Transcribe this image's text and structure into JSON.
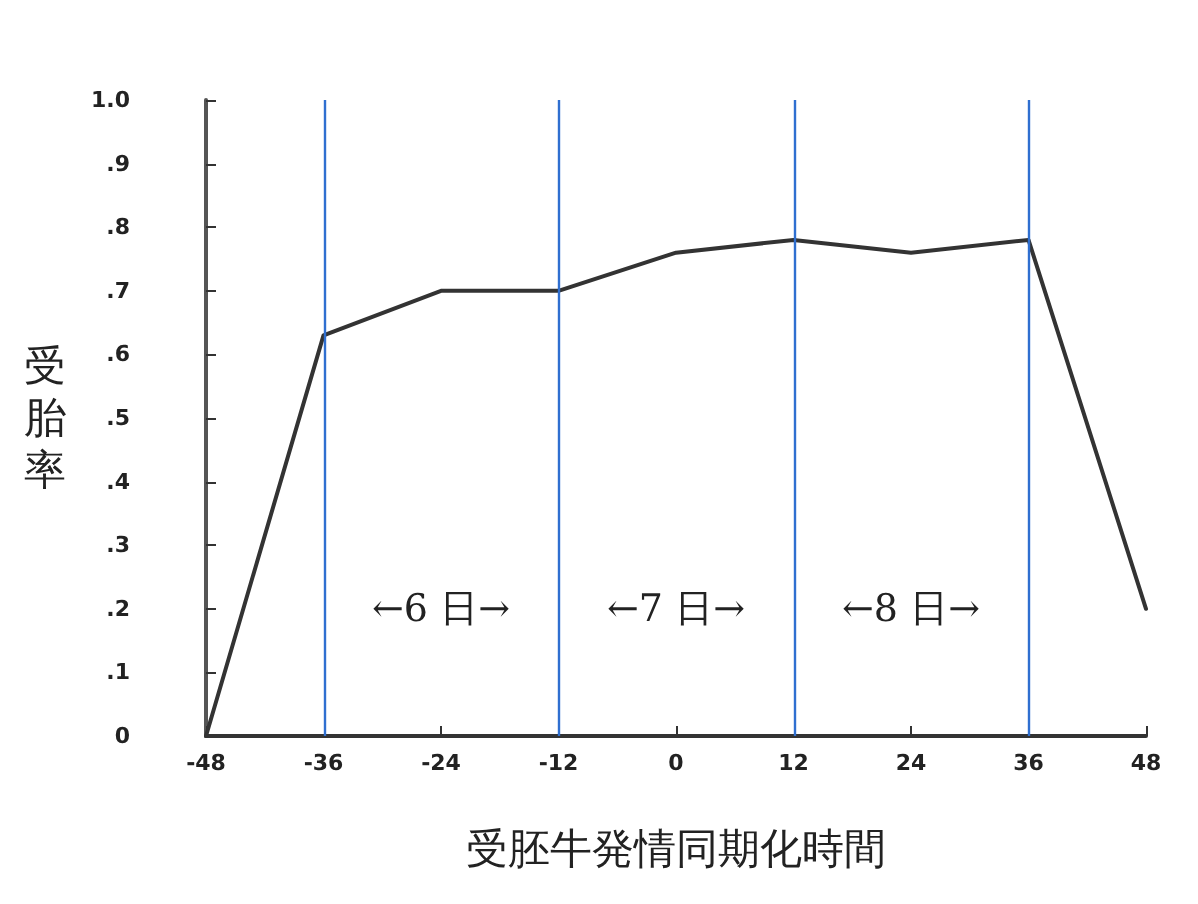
{
  "chart_data": {
    "type": "line",
    "xlabel": "受胚牛発情同期化時間",
    "ylabel": "受胎率",
    "x": [
      -48,
      -36,
      -24,
      -12,
      0,
      12,
      24,
      36,
      48
    ],
    "series": [
      {
        "color": "#333333",
        "values": [
          0,
          0.63,
          0.7,
          0.7,
          0.76,
          0.78,
          0.76,
          0.78,
          0.2
        ]
      }
    ],
    "xlim": [
      -48,
      48
    ],
    "xticks": [
      -48,
      -36,
      -24,
      -12,
      0,
      12,
      24,
      36,
      48
    ],
    "ylim": [
      0,
      1
    ],
    "yticks": [
      0,
      {
        "value": 0.1,
        "label": ".1"
      },
      {
        "value": 0.2,
        "label": ".2"
      },
      {
        "value": 0.3,
        "label": ".3"
      },
      {
        "value": 0.4,
        "label": ".4"
      },
      {
        "value": 0.5,
        "label": ".5"
      },
      {
        "value": 0.6,
        "label": ".6"
      },
      {
        "value": 0.7,
        "label": ".7"
      },
      {
        "value": 0.8,
        "label": ".8"
      },
      {
        "value": 0.9,
        "label": ".9"
      },
      {
        "value": 1,
        "label": "1.0"
      }
    ],
    "ref_lines": [
      {
        "axis": "x",
        "value": -36,
        "color": "#2f6fd0"
      },
      {
        "axis": "x",
        "value": -12,
        "color": "#2f6fd0"
      },
      {
        "axis": "x",
        "value": 12,
        "color": "#2f6fd0"
      },
      {
        "axis": "x",
        "value": 36,
        "color": "#2f6fd0"
      }
    ],
    "annotations": [
      "←6 日→",
      "←7 日→",
      "←8 日→"
    ],
    "grid": false,
    "marker": "none",
    "line_style": "solid"
  }
}
